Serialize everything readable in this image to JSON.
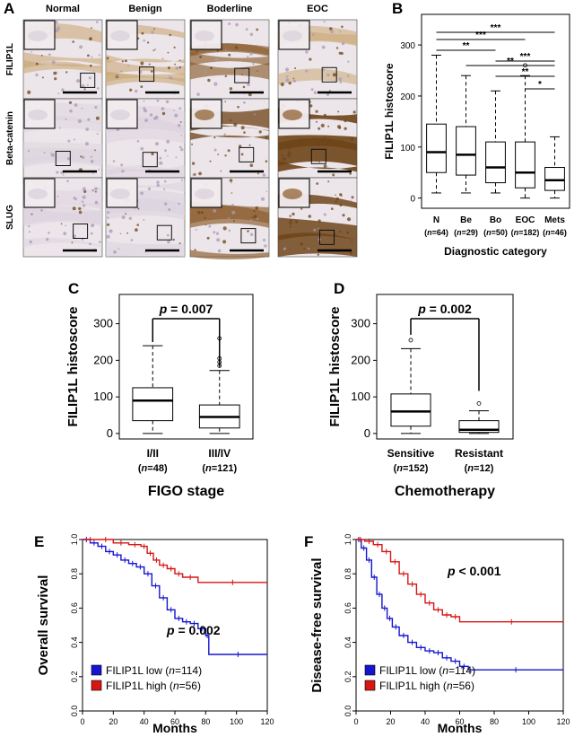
{
  "panel_letters": [
    "A",
    "B",
    "C",
    "D",
    "E",
    "F"
  ],
  "panel_a": {
    "columns": [
      "Normal",
      "Benign",
      "Boderline",
      "EOC"
    ],
    "rows": [
      "FILIP1L",
      "Beta-catenin",
      "SLUG"
    ],
    "tissue_colors": [
      "#d9d0dc",
      "#c9a673",
      "#8a5a2a",
      "#6e4418",
      "#a89ab8"
    ]
  },
  "chart_data": [
    {
      "id": "B",
      "type": "box",
      "ylabel": "FILIP1L histoscore",
      "xlabel": "Diagnostic category",
      "ylim": [
        -20,
        360
      ],
      "yticks": [
        0,
        100,
        200,
        300
      ],
      "categories": [
        "N",
        "Be",
        "Bo",
        "EOC",
        "Mets"
      ],
      "ns": [
        "(n=64)",
        "(n=29)",
        "(n=50)",
        "(n=182)",
        "(n=46)"
      ],
      "boxes": [
        {
          "min": 10,
          "q1": 50,
          "median": 90,
          "q3": 145,
          "max": 280,
          "outliers": []
        },
        {
          "min": 10,
          "q1": 45,
          "median": 85,
          "q3": 140,
          "max": 240,
          "outliers": []
        },
        {
          "min": 10,
          "q1": 30,
          "median": 60,
          "q3": 110,
          "max": 210,
          "outliers": []
        },
        {
          "min": 0,
          "q1": 20,
          "median": 50,
          "q3": 110,
          "max": 240,
          "outliers": [
            260
          ]
        },
        {
          "min": 0,
          "q1": 15,
          "median": 35,
          "q3": 60,
          "max": 120,
          "outliers": []
        }
      ],
      "significance": [
        {
          "from": 0,
          "to": 4,
          "label": "***"
        },
        {
          "from": 0,
          "to": 3,
          "label": "***"
        },
        {
          "from": 0,
          "to": 2,
          "label": "**"
        },
        {
          "from": 2,
          "to": 4,
          "label": "***"
        },
        {
          "from": 1,
          "to": 4,
          "label": "**"
        },
        {
          "from": 2,
          "to": 4,
          "label": "**"
        },
        {
          "from": 3,
          "to": 4,
          "label": "*"
        }
      ]
    },
    {
      "id": "C",
      "type": "box",
      "ylabel": "FILIP1L histoscore",
      "xlabel": "FIGO stage",
      "ylim": [
        -15,
        380
      ],
      "yticks": [
        0,
        100,
        200,
        300
      ],
      "categories": [
        "I/II",
        "III/IV"
      ],
      "ns": [
        "(n=48)",
        "(n=121)"
      ],
      "boxes": [
        {
          "min": 0,
          "q1": 35,
          "median": 90,
          "q3": 125,
          "max": 240,
          "outliers": []
        },
        {
          "min": 0,
          "q1": 15,
          "median": 45,
          "q3": 78,
          "max": 172,
          "outliers": [
            185,
            195,
            205,
            260
          ]
        }
      ],
      "pvalue": "p = 0.007"
    },
    {
      "id": "D",
      "type": "box",
      "ylabel": "FILIP1L histoscore",
      "xlabel": "Chemotherapy",
      "ylim": [
        -15,
        380
      ],
      "yticks": [
        0,
        100,
        200,
        300
      ],
      "categories": [
        "Sensitive",
        "Resistant"
      ],
      "ns": [
        "(n=152)",
        "(n=12)"
      ],
      "boxes": [
        {
          "min": 0,
          "q1": 20,
          "median": 60,
          "q3": 108,
          "max": 232,
          "outliers": [
            255
          ]
        },
        {
          "min": 0,
          "q1": 3,
          "median": 10,
          "q3": 35,
          "max": 62,
          "outliers": [
            82
          ]
        }
      ],
      "pvalue": "p = 0.002"
    },
    {
      "id": "E",
      "type": "line",
      "ylabel": "Overall survival",
      "xlabel": "Months",
      "xlim": [
        0,
        120
      ],
      "ylim": [
        0,
        1.0
      ],
      "xticks": [
        0,
        20,
        40,
        60,
        80,
        100,
        120
      ],
      "yticks": [
        0.0,
        0.2,
        0.4,
        0.6,
        0.8,
        1.0
      ],
      "pvalue": "p = 0.002",
      "legend": [
        "FILIP1L low (n=114)",
        "FILIP1L high (n=56)"
      ],
      "series": [
        {
          "name": "FILIP1L low (n=114)",
          "color": "#1515d0",
          "x": [
            0,
            5,
            10,
            15,
            20,
            25,
            30,
            35,
            40,
            45,
            50,
            55,
            60,
            65,
            70,
            75,
            80,
            82,
            120
          ],
          "y": [
            1.0,
            0.98,
            0.96,
            0.93,
            0.91,
            0.88,
            0.86,
            0.84,
            0.8,
            0.73,
            0.66,
            0.59,
            0.54,
            0.52,
            0.51,
            0.48,
            0.44,
            0.33,
            0.33
          ]
        },
        {
          "name": "FILIP1L high (n=56)",
          "color": "#d81515",
          "x": [
            0,
            10,
            20,
            30,
            38,
            42,
            46,
            50,
            55,
            60,
            65,
            75,
            120
          ],
          "y": [
            1.0,
            1.0,
            0.98,
            0.97,
            0.96,
            0.92,
            0.88,
            0.85,
            0.83,
            0.8,
            0.78,
            0.75,
            0.75
          ]
        }
      ]
    },
    {
      "id": "F",
      "type": "line",
      "ylabel": "Disease-free survival",
      "xlabel": "Months",
      "xlim": [
        0,
        120
      ],
      "ylim": [
        0,
        1.0
      ],
      "xticks": [
        0,
        20,
        40,
        60,
        80,
        100,
        120
      ],
      "yticks": [
        0.0,
        0.2,
        0.4,
        0.6,
        0.8,
        1.0
      ],
      "pvalue": "p < 0.001",
      "legend": [
        "FILIP1L low (n=114)",
        "FILIP1L high (n=56)"
      ],
      "series": [
        {
          "name": "FILIP1L low (n=114)",
          "color": "#1515d0",
          "x": [
            0,
            3,
            6,
            9,
            12,
            15,
            18,
            21,
            25,
            30,
            35,
            40,
            45,
            50,
            55,
            60,
            65,
            120
          ],
          "y": [
            1.0,
            0.95,
            0.88,
            0.78,
            0.68,
            0.6,
            0.54,
            0.49,
            0.44,
            0.4,
            0.37,
            0.35,
            0.34,
            0.31,
            0.29,
            0.26,
            0.24,
            0.24
          ]
        },
        {
          "name": "FILIP1L high (n=56)",
          "color": "#d81515",
          "x": [
            0,
            5,
            10,
            15,
            20,
            25,
            30,
            35,
            40,
            45,
            50,
            55,
            60,
            120
          ],
          "y": [
            1.0,
            0.99,
            0.97,
            0.93,
            0.87,
            0.8,
            0.74,
            0.68,
            0.63,
            0.59,
            0.56,
            0.55,
            0.52,
            0.52
          ]
        }
      ]
    }
  ]
}
